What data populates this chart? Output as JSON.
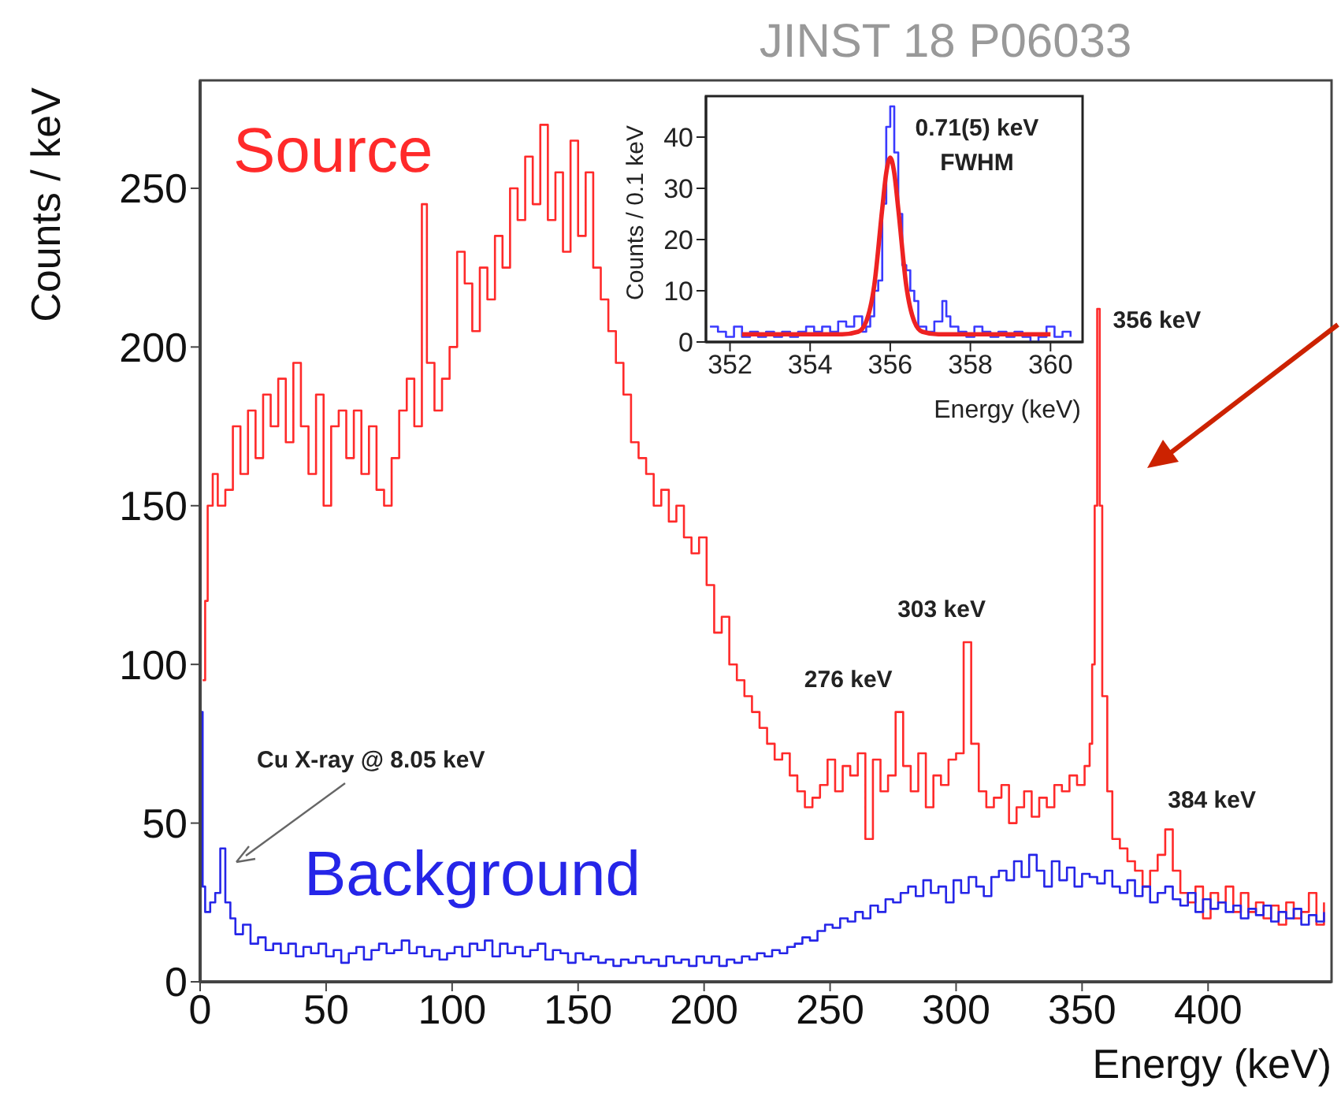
{
  "chart_data": [
    {
      "type": "step",
      "xlabel": "Energy (keV)",
      "ylabel": "Counts / keV",
      "xlim": [
        0,
        449
      ],
      "ylim": [
        0,
        284
      ],
      "xticks": [
        0,
        50,
        100,
        150,
        200,
        250,
        300,
        350,
        400
      ],
      "yticks": [
        0,
        50,
        100,
        150,
        200,
        250
      ],
      "series": [
        {
          "name": "Source",
          "color": "#ff2a2a",
          "x": [
            1,
            2,
            3,
            5,
            7,
            10,
            13,
            16,
            19,
            22,
            25,
            28,
            31,
            34,
            37,
            40,
            43,
            46,
            49,
            52,
            55,
            58,
            61,
            64,
            67,
            70,
            73,
            76,
            79,
            82,
            85,
            88,
            90,
            93,
            96,
            99,
            102,
            105,
            108,
            111,
            114,
            117,
            120,
            123,
            126,
            129,
            132,
            135,
            138,
            141,
            144,
            147,
            150,
            153,
            156,
            159,
            162,
            165,
            168,
            171,
            174,
            177,
            180,
            183,
            186,
            189,
            192,
            195,
            198,
            201,
            204,
            207,
            210,
            213,
            216,
            219,
            222,
            225,
            228,
            231,
            234,
            237,
            240,
            243,
            246,
            249,
            252,
            255,
            258,
            261,
            264,
            267,
            270,
            273,
            276,
            279,
            282,
            285,
            288,
            291,
            294,
            297,
            300,
            303,
            306,
            309,
            312,
            315,
            318,
            321,
            324,
            327,
            330,
            333,
            336,
            339,
            342,
            345,
            348,
            351,
            353,
            354,
            355,
            356,
            357,
            358,
            360,
            362,
            365,
            368,
            371,
            374,
            377,
            380,
            383,
            386,
            389,
            392,
            395,
            398,
            401,
            404,
            407,
            410,
            413,
            416,
            419,
            422,
            425,
            428,
            431,
            434,
            437,
            440,
            443,
            446
          ],
          "values": [
            95,
            120,
            150,
            160,
            150,
            155,
            175,
            160,
            180,
            165,
            185,
            175,
            190,
            170,
            195,
            175,
            160,
            185,
            150,
            175,
            180,
            165,
            180,
            160,
            175,
            155,
            150,
            165,
            180,
            190,
            175,
            245,
            195,
            180,
            190,
            200,
            230,
            220,
            205,
            225,
            215,
            235,
            225,
            250,
            240,
            260,
            245,
            270,
            240,
            255,
            230,
            265,
            235,
            255,
            225,
            215,
            205,
            195,
            185,
            170,
            165,
            160,
            150,
            155,
            145,
            150,
            140,
            135,
            140,
            125,
            110,
            115,
            100,
            95,
            90,
            85,
            80,
            75,
            70,
            72,
            65,
            60,
            55,
            58,
            62,
            70,
            60,
            68,
            65,
            72,
            45,
            70,
            60,
            65,
            85,
            68,
            60,
            72,
            55,
            65,
            62,
            70,
            72,
            107,
            75,
            60,
            55,
            58,
            62,
            50,
            55,
            60,
            52,
            58,
            55,
            62,
            60,
            65,
            62,
            68,
            75,
            100,
            150,
            212,
            150,
            90,
            60,
            45,
            42,
            38,
            35,
            30,
            35,
            40,
            48,
            35,
            28,
            25,
            30,
            20,
            28,
            25,
            30,
            22,
            28,
            22,
            25,
            20,
            24,
            18,
            25,
            20,
            22,
            28,
            18,
            25
          ]
        },
        {
          "name": "Background",
          "color": "#2525e8",
          "x": [
            0,
            1,
            2,
            4,
            6,
            8,
            10,
            12,
            14,
            17,
            20,
            23,
            26,
            29,
            32,
            35,
            38,
            41,
            44,
            47,
            50,
            53,
            56,
            59,
            62,
            65,
            68,
            71,
            74,
            77,
            80,
            83,
            86,
            89,
            92,
            95,
            98,
            101,
            104,
            107,
            110,
            113,
            116,
            119,
            122,
            125,
            128,
            131,
            134,
            137,
            140,
            143,
            146,
            149,
            152,
            155,
            158,
            161,
            164,
            167,
            170,
            173,
            176,
            179,
            182,
            185,
            188,
            191,
            194,
            197,
            200,
            203,
            206,
            209,
            212,
            215,
            218,
            221,
            224,
            227,
            230,
            233,
            236,
            239,
            242,
            245,
            248,
            251,
            254,
            257,
            260,
            263,
            266,
            269,
            272,
            275,
            278,
            281,
            284,
            287,
            290,
            293,
            296,
            299,
            302,
            305,
            308,
            311,
            314,
            317,
            320,
            323,
            326,
            329,
            332,
            335,
            338,
            341,
            344,
            347,
            350,
            353,
            356,
            359,
            362,
            365,
            368,
            371,
            374,
            377,
            380,
            383,
            386,
            389,
            392,
            395,
            398,
            401,
            404,
            407,
            410,
            413,
            416,
            419,
            422,
            425,
            428,
            431,
            434,
            437,
            440,
            443,
            446
          ],
          "values": [
            85,
            30,
            22,
            25,
            28,
            42,
            25,
            20,
            15,
            18,
            12,
            14,
            10,
            12,
            9,
            12,
            8,
            11,
            9,
            12,
            8,
            10,
            6,
            9,
            11,
            7,
            10,
            12,
            9,
            10,
            13,
            9,
            11,
            8,
            10,
            7,
            9,
            11,
            8,
            12,
            10,
            13,
            8,
            12,
            9,
            11,
            8,
            10,
            12,
            7,
            10,
            9,
            6,
            9,
            7,
            8,
            6,
            7,
            5,
            7,
            6,
            8,
            6,
            7,
            5,
            8,
            6,
            7,
            5,
            8,
            6,
            8,
            5,
            7,
            6,
            8,
            7,
            9,
            8,
            10,
            9,
            11,
            12,
            14,
            13,
            16,
            18,
            17,
            20,
            19,
            22,
            20,
            24,
            22,
            26,
            25,
            28,
            30,
            27,
            32,
            28,
            30,
            25,
            32,
            28,
            33,
            30,
            27,
            33,
            35,
            32,
            38,
            33,
            40,
            35,
            30,
            38,
            32,
            36,
            30,
            34,
            33,
            31,
            35,
            30,
            28,
            32,
            27,
            30,
            25,
            28,
            30,
            26,
            24,
            28,
            22,
            26,
            23,
            25,
            22,
            24,
            20,
            23,
            21,
            24,
            19,
            22,
            20,
            23,
            18,
            21,
            19,
            22
          ]
        }
      ],
      "annotations": [
        "JINST 18 P06033",
        {
          "text": "276 keV",
          "x": 276,
          "y": 85
        },
        {
          "text": "303 keV",
          "x": 303,
          "y": 107
        },
        {
          "text": "356 keV",
          "x": 356,
          "y": 212
        },
        {
          "text": "384 keV",
          "x": 384,
          "y": 48
        },
        "Cu X-ray @ 8.05 keV"
      ]
    },
    {
      "type": "step",
      "xlabel": "Energy (keV)",
      "ylabel": "Counts / 0.1 keV",
      "xlim": [
        351.4,
        360.8
      ],
      "ylim": [
        0,
        48
      ],
      "xticks": [
        352,
        354,
        356,
        358,
        360
      ],
      "yticks": [
        0,
        10,
        20,
        30,
        40
      ],
      "series": [
        {
          "color": "#3a3aff",
          "x": [
            351.5,
            351.7,
            351.9,
            352.1,
            352.3,
            352.5,
            352.7,
            352.9,
            353.1,
            353.3,
            353.5,
            353.7,
            353.9,
            354.1,
            354.3,
            354.5,
            354.7,
            354.9,
            355.1,
            355.3,
            355.4,
            355.5,
            355.6,
            355.7,
            355.8,
            355.9,
            356.0,
            356.1,
            356.2,
            356.3,
            356.4,
            356.5,
            356.6,
            356.7,
            356.9,
            357.1,
            357.3,
            357.4,
            357.5,
            357.7,
            357.9,
            358.1,
            358.3,
            358.5,
            358.7,
            358.9,
            359.1,
            359.3,
            359.5,
            359.7,
            359.9,
            360.1,
            360.3,
            360.5
          ],
          "values": [
            3,
            2,
            1,
            3,
            1,
            2,
            1,
            2,
            1,
            2,
            1,
            2,
            3,
            2,
            3,
            2,
            4,
            3,
            5,
            2,
            3,
            5,
            10,
            12,
            27,
            42,
            46,
            37,
            25,
            15,
            14,
            10,
            8,
            3,
            2,
            4,
            8,
            5,
            3,
            2,
            1,
            3,
            2,
            1,
            2,
            1,
            2,
            1,
            0,
            1,
            3,
            1,
            2,
            1
          ]
        },
        {
          "type": "line",
          "color": "#ee2222",
          "x": [
            352.3,
            353,
            354,
            354.8,
            355.2,
            355.4,
            355.6,
            355.8,
            355.9,
            356.0,
            356.1,
            356.2,
            356.4,
            356.6,
            356.8,
            357.2,
            358,
            359,
            360
          ],
          "values": [
            1.5,
            1.5,
            1.5,
            1.5,
            2,
            4,
            11,
            26,
            33,
            36,
            33,
            26,
            11,
            4,
            2,
            1.5,
            1.5,
            1.5,
            1.5
          ]
        }
      ],
      "annotations": [
        "0.71(5) keV",
        "FWHM"
      ]
    }
  ]
}
